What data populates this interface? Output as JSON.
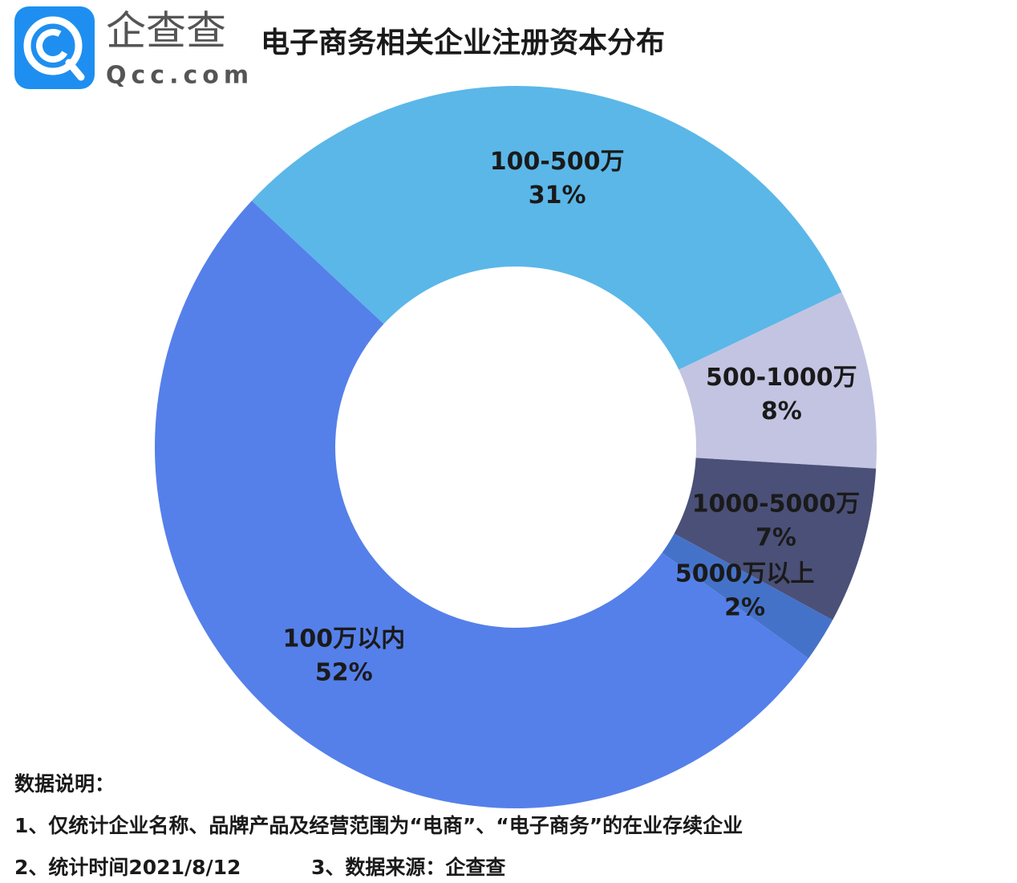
{
  "logo": {
    "name": "企查查",
    "url": "Qcc.com"
  },
  "chart_data": {
    "type": "donut",
    "title": "电子商务相关企业注册资本分布",
    "categories": [
      "100-500万",
      "500-1000万",
      "1000-5000万",
      "5000万以上",
      "100万以内"
    ],
    "values": [
      31,
      8,
      7,
      2,
      52
    ],
    "value_labels": [
      "31%",
      "8%",
      "7%",
      "2%",
      "52%"
    ],
    "colors": [
      "#5bb7e8",
      "#c3c4e2",
      "#4b5078",
      "#4572c9",
      "#5580ea"
    ]
  },
  "notes": {
    "heading": "数据说明：",
    "lines": [
      "1、仅统计企业名称、品牌产品及经营范围为“电商”、“电子商务”的在业存续企业",
      "2、统计时间2021/8/12",
      "3、数据来源：企查查"
    ]
  }
}
